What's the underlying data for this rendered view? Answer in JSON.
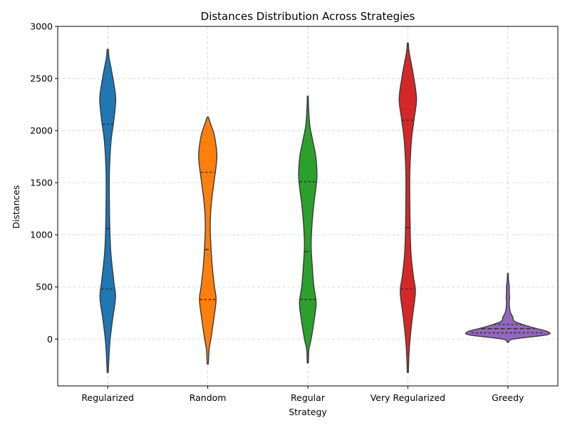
{
  "chart_data": {
    "type": "violin",
    "title": "Distances Distribution Across Strategies",
    "xlabel": "Strategy",
    "ylabel": "Distances",
    "ylim": [
      -450,
      3000
    ],
    "yticks": [
      0,
      500,
      1000,
      1500,
      2000,
      2500,
      3000
    ],
    "grid": true,
    "categories": [
      "Regularized",
      "Random",
      "Regular",
      "Very Regularized",
      "Greedy"
    ],
    "colors": [
      "#1f77b4",
      "#ff7f0e",
      "#2ca02c",
      "#d62728",
      "#9467bd"
    ],
    "series": [
      {
        "category": "Regularized",
        "extent": [
          -320,
          2780
        ],
        "quartiles": [
          480,
          1060,
          2060
        ],
        "density": [
          [
            -320,
            0.05
          ],
          [
            -150,
            0.12
          ],
          [
            0,
            0.22
          ],
          [
            200,
            0.45
          ],
          [
            400,
            0.7
          ],
          [
            550,
            0.55
          ],
          [
            800,
            0.3
          ],
          [
            1000,
            0.2
          ],
          [
            1300,
            0.15
          ],
          [
            1600,
            0.15
          ],
          [
            1900,
            0.3
          ],
          [
            2100,
            0.55
          ],
          [
            2300,
            0.72
          ],
          [
            2450,
            0.55
          ],
          [
            2600,
            0.3
          ],
          [
            2700,
            0.12
          ],
          [
            2780,
            0.05
          ]
        ]
      },
      {
        "category": "Random",
        "extent": [
          -240,
          2130
        ],
        "quartiles": [
          380,
          860,
          1600
        ],
        "density": [
          [
            -240,
            0.05
          ],
          [
            -100,
            0.12
          ],
          [
            0,
            0.28
          ],
          [
            200,
            0.55
          ],
          [
            380,
            0.75
          ],
          [
            500,
            0.6
          ],
          [
            700,
            0.4
          ],
          [
            900,
            0.28
          ],
          [
            1100,
            0.22
          ],
          [
            1300,
            0.32
          ],
          [
            1500,
            0.55
          ],
          [
            1750,
            0.82
          ],
          [
            1950,
            0.6
          ],
          [
            2050,
            0.3
          ],
          [
            2130,
            0.05
          ]
        ]
      },
      {
        "category": "Regular",
        "extent": [
          -230,
          2330
        ],
        "quartiles": [
          380,
          840,
          1510
        ],
        "density": [
          [
            -230,
            0.05
          ],
          [
            -100,
            0.1
          ],
          [
            0,
            0.3
          ],
          [
            200,
            0.6
          ],
          [
            350,
            0.75
          ],
          [
            500,
            0.55
          ],
          [
            700,
            0.4
          ],
          [
            900,
            0.3
          ],
          [
            1100,
            0.38
          ],
          [
            1300,
            0.55
          ],
          [
            1550,
            0.82
          ],
          [
            1750,
            0.72
          ],
          [
            1900,
            0.45
          ],
          [
            2050,
            0.18
          ],
          [
            2200,
            0.08
          ],
          [
            2330,
            0.04
          ]
        ]
      },
      {
        "category": "Very Regularized",
        "extent": [
          -320,
          2840
        ],
        "quartiles": [
          480,
          1070,
          2100
        ],
        "density": [
          [
            -320,
            0.05
          ],
          [
            -150,
            0.1
          ],
          [
            0,
            0.2
          ],
          [
            200,
            0.4
          ],
          [
            450,
            0.68
          ],
          [
            600,
            0.5
          ],
          [
            800,
            0.3
          ],
          [
            1000,
            0.22
          ],
          [
            1300,
            0.18
          ],
          [
            1600,
            0.18
          ],
          [
            1900,
            0.32
          ],
          [
            2100,
            0.55
          ],
          [
            2300,
            0.78
          ],
          [
            2500,
            0.55
          ],
          [
            2650,
            0.3
          ],
          [
            2750,
            0.12
          ],
          [
            2840,
            0.04
          ]
        ]
      },
      {
        "category": "Greedy",
        "extent": [
          -30,
          630
        ],
        "quartiles": [
          60,
          100,
          140
        ],
        "density": [
          [
            -30,
            0.08
          ],
          [
            0,
            0.5
          ],
          [
            40,
            3.5
          ],
          [
            70,
            3.6
          ],
          [
            100,
            2.6
          ],
          [
            130,
            1.6
          ],
          [
            170,
            0.6
          ],
          [
            210,
            0.45
          ],
          [
            250,
            0.25
          ],
          [
            300,
            0.15
          ],
          [
            350,
            0.12
          ],
          [
            400,
            0.15
          ],
          [
            450,
            0.12
          ],
          [
            500,
            0.13
          ],
          [
            560,
            0.06
          ],
          [
            630,
            0.03
          ]
        ]
      }
    ]
  }
}
